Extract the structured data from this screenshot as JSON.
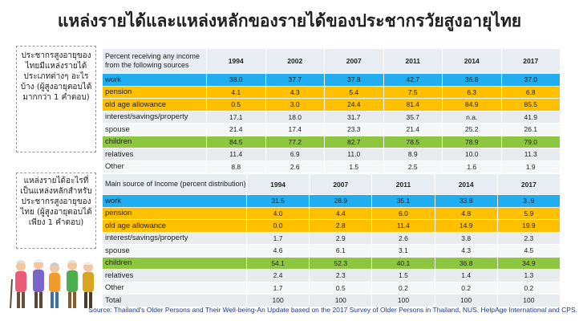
{
  "title": "แหล่งรายได้และแหล่งหลักของรายได้ของประชากรวัยสูงอายุไทย",
  "note1": "ประชากรสูงอายุของไทยมีแหล่งรายได้ประเภทต่างๆ อะไรบ้าง (ผู้สูงอายุตอบได้มากกว่า 1 คำตอบ)",
  "note2": "แหล่งรายได้อะไรที่เป็นแหล่งหลักสำหรับประชากรสูงอายุของไทย (ผู้สูงอายุตอบได้เพียง 1 คำตอบ)",
  "figure_icon": "elderly-group-icon",
  "colors": {
    "blue": "#20aef0",
    "orange": "#ffc000",
    "green": "#8dc63f"
  },
  "table1": {
    "header_label": "Percent receiving any income from the following sources",
    "years": [
      "1994",
      "2002",
      "2007",
      "2011",
      "2014",
      "2017"
    ],
    "rows": [
      {
        "label": "work",
        "values": [
          "38.0",
          "37.7",
          "37.8",
          "42.7",
          "36.8",
          "37.0"
        ],
        "color": "blue"
      },
      {
        "label": "pension",
        "values": [
          "4.1",
          "4.3",
          "5.4",
          "7.5",
          "6.3",
          "6.8"
        ],
        "color": "orange"
      },
      {
        "label": "old age allowance",
        "values": [
          "0.5",
          "3.0",
          "24.4",
          "81.4",
          "84.9",
          "85.5"
        ],
        "color": "orange"
      },
      {
        "label": "interest/savings/property",
        "values": [
          "17.1",
          "18.0",
          "31.7",
          "35.7",
          "n.a.",
          "41.9"
        ],
        "color": "grey"
      },
      {
        "label": "spouse",
        "values": [
          "21.4",
          "17.4",
          "23.3",
          "21.4",
          "25.2",
          "26.1"
        ],
        "color": "white"
      },
      {
        "label": "children",
        "values": [
          "84.5",
          "77.2",
          "82.7",
          "78.5",
          "78.9",
          "79.0"
        ],
        "color": "green"
      },
      {
        "label": "relatives",
        "values": [
          "11.4",
          "6.9",
          "11.0",
          "8.9",
          "10.0",
          "11.3"
        ],
        "color": "grey"
      },
      {
        "label": "Other",
        "values": [
          "8.8",
          "2.6",
          "1.5",
          "2.5",
          "1.6",
          "1.9"
        ],
        "color": "white"
      }
    ]
  },
  "table2": {
    "header_label": "Main source of Income (percent distribution)",
    "years": [
      "1994",
      "2007",
      "2011",
      "2014",
      "2017"
    ],
    "rows": [
      {
        "label": "work",
        "values": [
          "31.5",
          "28.9",
          "35.1",
          "33.8",
          "3..9"
        ],
        "color": "blue"
      },
      {
        "label": "pension",
        "values": [
          "4.0",
          "4.4",
          "6.0",
          "4.8",
          "5.9"
        ],
        "color": "orange"
      },
      {
        "label": "old age allowance",
        "values": [
          "0.0",
          "2.8",
          "11.4",
          "14.9",
          "19.9"
        ],
        "color": "orange"
      },
      {
        "label": "interest/savings/property",
        "values": [
          "1.7",
          "2.9",
          "2.6",
          "3.8",
          "2.3"
        ],
        "color": "grey"
      },
      {
        "label": "spouse",
        "values": [
          "4.6",
          "6.1",
          "3.1",
          "4.3",
          "4.5"
        ],
        "color": "white"
      },
      {
        "label": "children",
        "values": [
          "54.1",
          "52.3",
          "40.1",
          "36.8",
          "34.9"
        ],
        "color": "green"
      },
      {
        "label": "relatives",
        "values": [
          "2.4",
          "2.3",
          "1.5",
          "1.4",
          "1.3"
        ],
        "color": "grey"
      },
      {
        "label": "Other",
        "values": [
          "1.7",
          "0.5",
          "0.2",
          "0.2",
          "0.2"
        ],
        "color": "white"
      },
      {
        "label": "Total",
        "values": [
          "100",
          "100",
          "100",
          "100",
          "100"
        ],
        "color": "grey"
      }
    ]
  },
  "source": "Source: Thailand's Older Persons and Their Well-being-An Update based on the 2017 Survey of Older Persons in Thailand, NUS, HelpAge International and CPS."
}
